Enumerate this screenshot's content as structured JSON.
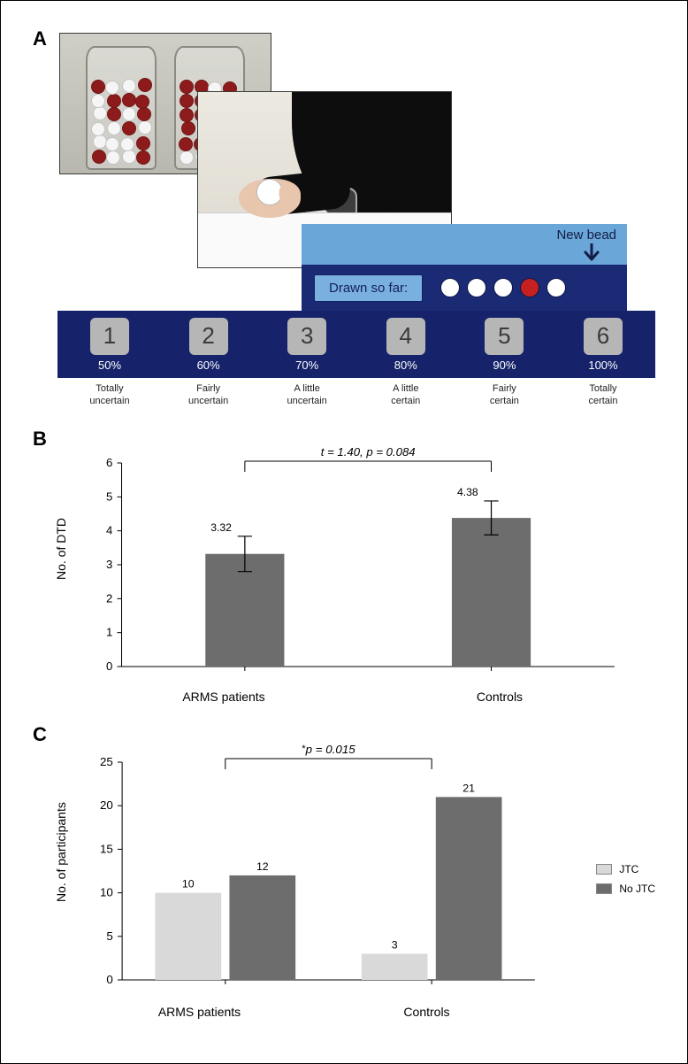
{
  "panelA": {
    "letter": "A",
    "newBeadLabel": "New bead",
    "drawnLabel": "Drawn so far:",
    "beads": [
      "white",
      "white",
      "white",
      "red",
      "white"
    ],
    "scale": {
      "bar_bg": "#16236a",
      "box_bg": "#b6b6b6",
      "items": [
        {
          "num": "1",
          "pct": "50%",
          "cap": "Totally\nuncertain"
        },
        {
          "num": "2",
          "pct": "60%",
          "cap": "Fairly\nuncertain"
        },
        {
          "num": "3",
          "pct": "70%",
          "cap": "A little\nuncertain"
        },
        {
          "num": "4",
          "pct": "80%",
          "cap": "A little\ncertain"
        },
        {
          "num": "5",
          "pct": "90%",
          "cap": "Fairly\ncertain"
        },
        {
          "num": "6",
          "pct": "100%",
          "cap": "Totally\ncertain"
        }
      ]
    },
    "colors": {
      "drawnbar_bg": "#1b2a75",
      "lightblue": "#6aa6d8",
      "chip_bg": "#7ab0e0",
      "arrow": "#131d45",
      "bead_red": "#c72020",
      "bead_white": "#ffffff"
    }
  },
  "panelB": {
    "letter": "B",
    "type": "bar_with_error",
    "ylabel": "No. of DTD",
    "ylim": [
      0,
      6
    ],
    "ytick_step": 1,
    "categories": [
      "ARMS patients",
      "Controls"
    ],
    "values": [
      3.32,
      4.38
    ],
    "value_labels": [
      "3.32",
      "4.38"
    ],
    "errors": [
      0.52,
      0.5
    ],
    "bar_color": "#6d6d6d",
    "axis_color": "#000000",
    "text_color": "#000000",
    "bar_width": 0.32,
    "bracket_text": "t = 1.40, p = 0.084",
    "bracket_italic": true,
    "tick_fontsize": 13,
    "label_fontsize": 14
  },
  "panelC": {
    "letter": "C",
    "type": "grouped_bar",
    "ylabel": "No. of participants",
    "ylim": [
      0,
      25
    ],
    "ytick_step": 5,
    "categories": [
      "ARMS patients",
      "Controls"
    ],
    "series": [
      {
        "name": "JTC",
        "color": "#d9d9d9",
        "values": [
          10,
          3
        ]
      },
      {
        "name": "No JTC",
        "color": "#6d6d6d",
        "values": [
          12,
          21
        ]
      }
    ],
    "value_labels": [
      [
        "10",
        "12"
      ],
      [
        "3",
        "21"
      ]
    ],
    "axis_color": "#000000",
    "bar_width": 0.32,
    "group_gap": 0.04,
    "bracket_text": "*p = 0.015",
    "bracket_italic": true,
    "tick_fontsize": 13,
    "label_fontsize": 14,
    "legend_title": ""
  }
}
